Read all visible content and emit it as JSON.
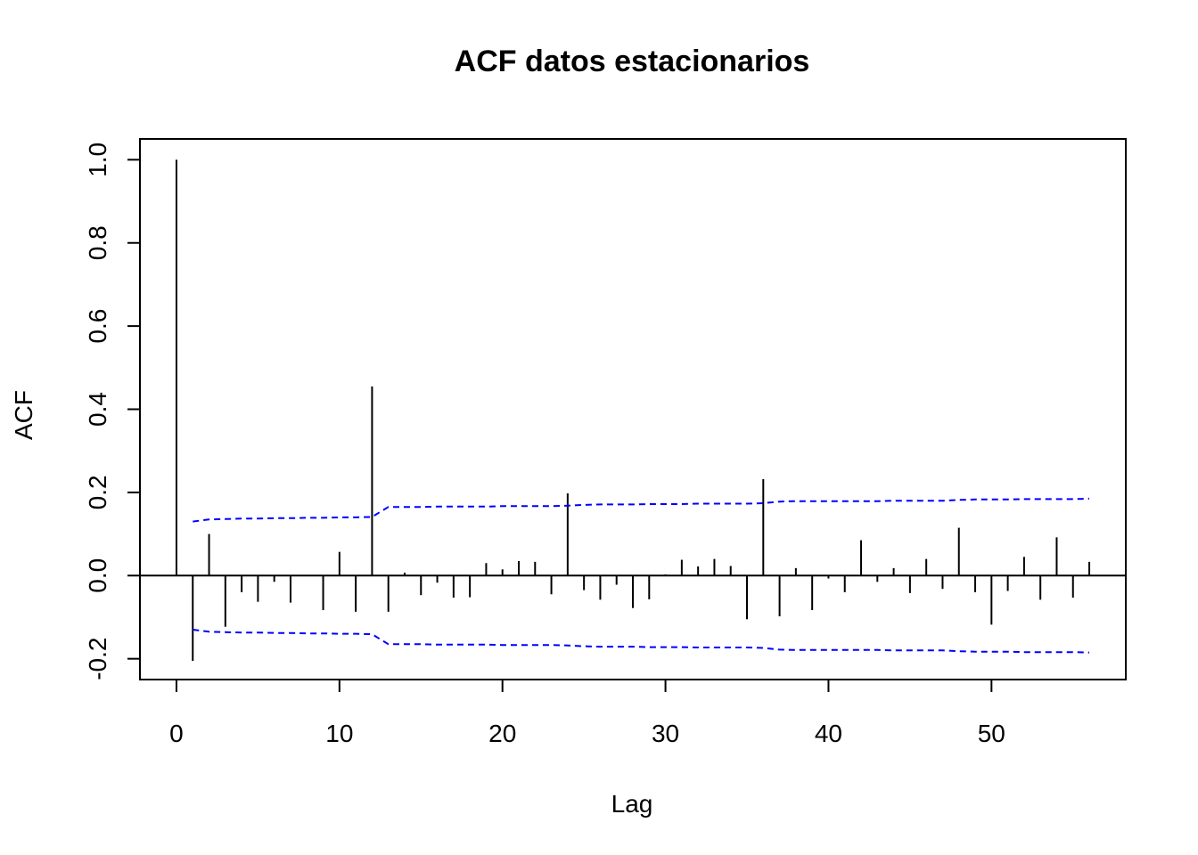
{
  "chart_data": {
    "type": "bar",
    "title": "ACF datos estacionarios",
    "xlabel": "Lag",
    "ylabel": "ACF",
    "xlim": [
      -2.24,
      58.24
    ],
    "ylim": [
      -0.25,
      1.05
    ],
    "xticks": [
      0,
      10,
      20,
      30,
      40,
      50
    ],
    "xtick_labels": [
      "0",
      "10",
      "20",
      "30",
      "40",
      "50"
    ],
    "yticks": [
      -0.2,
      0.0,
      0.2,
      0.4,
      0.6,
      0.8,
      1.0
    ],
    "ytick_labels": [
      "-0.2",
      "0.0",
      "0.2",
      "0.4",
      "0.6",
      "0.8",
      "1.0"
    ],
    "grid": false,
    "bar_color": "#000000",
    "ci_color": "#0000ff",
    "lags": [
      0,
      1,
      2,
      3,
      4,
      5,
      6,
      7,
      8,
      9,
      10,
      11,
      12,
      13,
      14,
      15,
      16,
      17,
      18,
      19,
      20,
      21,
      22,
      23,
      24,
      25,
      26,
      27,
      28,
      29,
      30,
      31,
      32,
      33,
      34,
      35,
      36,
      37,
      38,
      39,
      40,
      41,
      42,
      43,
      44,
      45,
      46,
      47,
      48,
      49,
      50,
      51,
      52,
      53,
      54,
      55,
      56
    ],
    "values": [
      1.0,
      -0.205,
      0.1,
      -0.123,
      -0.04,
      -0.063,
      -0.015,
      -0.065,
      0.0,
      -0.083,
      0.057,
      -0.087,
      0.455,
      -0.087,
      0.007,
      -0.047,
      -0.017,
      -0.053,
      -0.052,
      0.03,
      0.015,
      0.035,
      0.033,
      -0.045,
      0.198,
      -0.035,
      -0.058,
      -0.022,
      -0.078,
      -0.057,
      0.003,
      0.038,
      0.022,
      0.04,
      0.023,
      -0.105,
      0.232,
      -0.098,
      0.018,
      -0.083,
      -0.007,
      -0.04,
      0.085,
      -0.015,
      0.018,
      -0.042,
      0.04,
      -0.032,
      0.115,
      -0.04,
      -0.118,
      -0.037,
      0.045,
      -0.058,
      0.092,
      -0.053,
      0.033
    ],
    "ci_upper": [
      0.13,
      0.13,
      0.135,
      0.136,
      0.137,
      0.137,
      0.138,
      0.138,
      0.139,
      0.139,
      0.14,
      0.14,
      0.141,
      0.165,
      0.165,
      0.165,
      0.166,
      0.166,
      0.166,
      0.166,
      0.167,
      0.167,
      0.167,
      0.167,
      0.168,
      0.17,
      0.171,
      0.171,
      0.171,
      0.172,
      0.172,
      0.172,
      0.173,
      0.173,
      0.173,
      0.173,
      0.174,
      0.178,
      0.179,
      0.179,
      0.179,
      0.179,
      0.179,
      0.179,
      0.18,
      0.18,
      0.18,
      0.18,
      0.182,
      0.183,
      0.183,
      0.183,
      0.184,
      0.184,
      0.184,
      0.184,
      0.185
    ],
    "ci_lower": [
      -0.13,
      -0.13,
      -0.135,
      -0.136,
      -0.137,
      -0.137,
      -0.138,
      -0.138,
      -0.139,
      -0.139,
      -0.14,
      -0.14,
      -0.141,
      -0.165,
      -0.165,
      -0.165,
      -0.166,
      -0.166,
      -0.166,
      -0.166,
      -0.167,
      -0.167,
      -0.167,
      -0.167,
      -0.168,
      -0.17,
      -0.171,
      -0.171,
      -0.171,
      -0.172,
      -0.172,
      -0.172,
      -0.173,
      -0.173,
      -0.173,
      -0.173,
      -0.174,
      -0.178,
      -0.179,
      -0.179,
      -0.179,
      -0.179,
      -0.179,
      -0.179,
      -0.18,
      -0.18,
      -0.18,
      -0.18,
      -0.182,
      -0.183,
      -0.183,
      -0.183,
      -0.184,
      -0.184,
      -0.184,
      -0.184,
      -0.185
    ]
  }
}
